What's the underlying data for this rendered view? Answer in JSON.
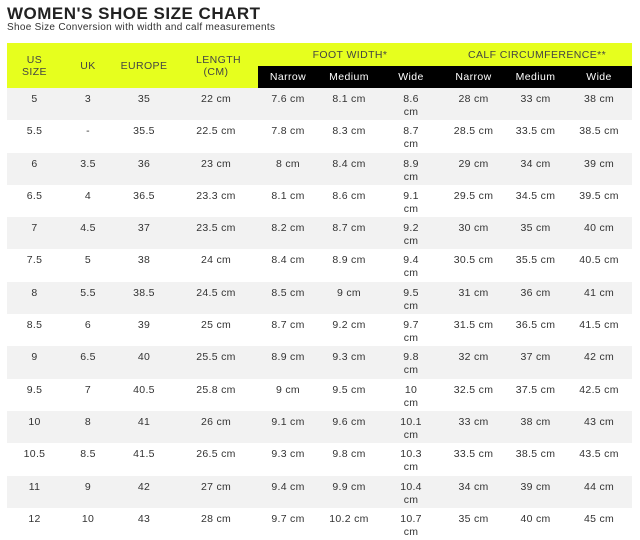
{
  "title": "WOMEN'S SHOE SIZE CHART",
  "subtitle": "Shoe Size Conversion with width and calf measurements",
  "headers": {
    "us": "US SIZE",
    "uk": "UK",
    "europe": "EUROPE",
    "length": "LENGTH (CM)",
    "foot_width": "FOOT WIDTH*",
    "calf": "CALF CIRCUMFERENCE**",
    "narrow": "Narrow",
    "medium": "Medium",
    "wide": "Wide"
  },
  "colors": {
    "header_yellow": "#e6ff1e",
    "subheader_black": "#000000",
    "row_alt": "#f2f2f2"
  },
  "rows": [
    [
      "5",
      "3",
      "35",
      "22 cm",
      "7.6 cm",
      "8.1 cm",
      "8.6 cm",
      "28 cm",
      "33 cm",
      "38 cm"
    ],
    [
      "5.5",
      "-",
      "35.5",
      "22.5 cm",
      "7.8 cm",
      "8.3 cm",
      "8.7 cm",
      "28.5 cm",
      "33.5 cm",
      "38.5 cm"
    ],
    [
      "6",
      "3.5",
      "36",
      "23 cm",
      "8 cm",
      "8.4 cm",
      "8.9 cm",
      "29 cm",
      "34 cm",
      "39 cm"
    ],
    [
      "6.5",
      "4",
      "36.5",
      "23.3 cm",
      "8.1 cm",
      "8.6 cm",
      "9.1 cm",
      "29.5 cm",
      "34.5 cm",
      "39.5 cm"
    ],
    [
      "7",
      "4.5",
      "37",
      "23.5 cm",
      "8.2 cm",
      "8.7 cm",
      "9.2 cm",
      "30 cm",
      "35 cm",
      "40 cm"
    ],
    [
      "7.5",
      "5",
      "38",
      "24 cm",
      "8.4 cm",
      "8.9 cm",
      "9.4 cm",
      "30.5 cm",
      "35.5 cm",
      "40.5 cm"
    ],
    [
      "8",
      "5.5",
      "38.5",
      "24.5 cm",
      "8.5 cm",
      "9 cm",
      "9.5 cm",
      "31 cm",
      "36 cm",
      "41 cm"
    ],
    [
      "8.5",
      "6",
      "39",
      "25 cm",
      "8.7 cm",
      "9.2 cm",
      "9.7 cm",
      "31.5 cm",
      "36.5 cm",
      "41.5 cm"
    ],
    [
      "9",
      "6.5",
      "40",
      "25.5 cm",
      "8.9 cm",
      "9.3 cm",
      "9.8 cm",
      "32 cm",
      "37 cm",
      "42 cm"
    ],
    [
      "9.5",
      "7",
      "40.5",
      "25.8 cm",
      "9 cm",
      "9.5 cm",
      "10 cm",
      "32.5 cm",
      "37.5 cm",
      "42.5 cm"
    ],
    [
      "10",
      "8",
      "41",
      "26 cm",
      "9.1 cm",
      "9.6 cm",
      "10.1 cm",
      "33 cm",
      "38 cm",
      "43 cm"
    ],
    [
      "10.5",
      "8.5",
      "41.5",
      "26.5 cm",
      "9.3 cm",
      "9.8 cm",
      "10.3 cm",
      "33.5 cm",
      "38.5 cm",
      "43.5 cm"
    ],
    [
      "11",
      "9",
      "42",
      "27 cm",
      "9.4 cm",
      "9.9 cm",
      "10.4 cm",
      "34 cm",
      "39 cm",
      "44 cm"
    ],
    [
      "12",
      "10",
      "43",
      "28 cm",
      "9.7 cm",
      "10.2 cm",
      "10.7 cm",
      "35 cm",
      "40 cm",
      "45 cm"
    ]
  ]
}
